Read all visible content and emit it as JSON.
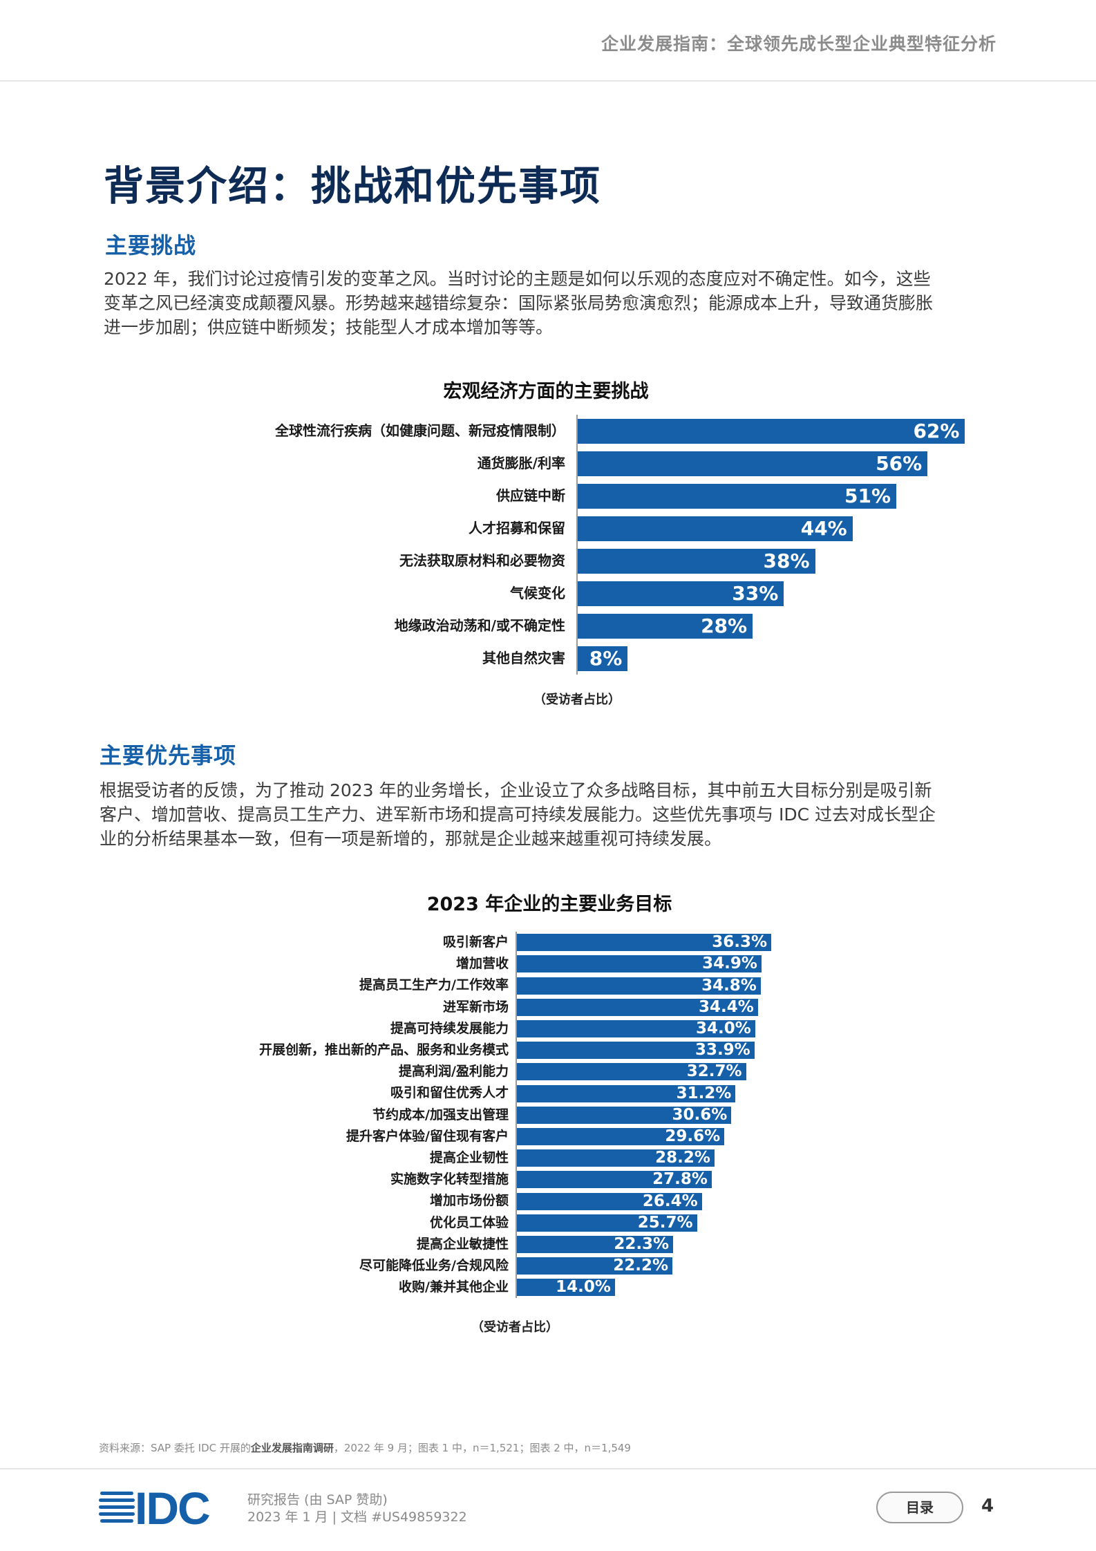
{
  "header": {
    "title": "企业发展指南：全球领先成长型企业典型特征分析"
  },
  "main_title": "背景介绍：挑战和优先事项",
  "section1": {
    "title": "主要挑战",
    "paragraph_lines": [
      "2022 年，我们讨论过疫情引发的变革之风。当时讨论的主题是如何以乐观的态度应对不确定性。如今，这些",
      "变革之风已经演变成颠覆风暴。形势越来越错综复杂：国际紧张局势愈演愈烈；能源成本上升，导致通货膨胀",
      "进一步加剧；供应链中断频发；技能型人才成本增加等等。"
    ]
  },
  "section2": {
    "title": "主要优先事项",
    "paragraph_lines": [
      "根据受访者的反馈，为了推动 2023 年的业务增长，企业设立了众多战略目标，其中前五大目标分别是吸引新",
      "客户、增加营收、提高员工生产力、进军新市场和提高可持续发展能力。这些优先事项与 IDC 过去对成长型企",
      "业的分析结果基本一致，但有一项是新增的，那就是企业越来越重视可持续发展。"
    ]
  },
  "chart_data": [
    {
      "type": "bar",
      "orientation": "horizontal",
      "title": "宏观经济方面的主要挑战",
      "categories": [
        "全球性流行疾病（如健康问题、新冠疫情限制）",
        "通货膨胀/利率",
        "供应链中断",
        "人才招募和保留",
        "无法获取原材料和必要物资",
        "气候变化",
        "地缘政治动荡和/或不确定性",
        "其他自然灾害"
      ],
      "values": [
        62,
        56,
        51,
        44,
        38,
        33,
        28,
        8
      ],
      "value_labels": [
        "62%",
        "56%",
        "51%",
        "44%",
        "38%",
        "33%",
        "28%",
        "8%"
      ],
      "note": "（受访者占比）",
      "xlim": [
        0,
        100
      ],
      "color": "#1560a8"
    },
    {
      "type": "bar",
      "orientation": "horizontal",
      "title": "2023 年企业的主要业务目标",
      "categories": [
        "吸引新客户",
        "增加营收",
        "提高员工生产力/工作效率",
        "进军新市场",
        "提高可持续发展能力",
        "开展创新，推出新的产品、服务和业务模式",
        "提高利润/盈利能力",
        "吸引和留住优秀人才",
        "节约成本/加强支出管理",
        "提升客户体验/留住现有客户",
        "提高企业韧性",
        "实施数字化转型措施",
        "增加市场份额",
        "优化员工体验",
        "提高企业敏捷性",
        "尽可能降低业务/合规风险",
        "收购/兼并其他企业"
      ],
      "values": [
        36.3,
        34.9,
        34.8,
        34.4,
        34.0,
        33.9,
        32.7,
        31.2,
        30.6,
        29.6,
        28.2,
        27.8,
        26.4,
        25.7,
        22.3,
        22.2,
        14.0
      ],
      "value_labels": [
        "36.3%",
        "34.9%",
        "34.8%",
        "34.4%",
        "34.0%",
        "33.9%",
        "32.7%",
        "31.2%",
        "30.6%",
        "29.6%",
        "28.2%",
        "27.8%",
        "26.4%",
        "25.7%",
        "22.3%",
        "22.2%",
        "14.0%"
      ],
      "note": "（受访者占比）",
      "xlim": [
        0,
        100
      ],
      "color": "#1560a8"
    }
  ],
  "source": {
    "prefix": "资料来源：SAP 委托 IDC 开展的",
    "bold": "企业发展指南调研",
    "suffix": "，2022 年 9 月；图表 1 中，n＝1,521；图表 2 中，n＝1,549"
  },
  "footer": {
    "logo_text": "IDC",
    "line1": "研究报告 (由 SAP 赞助)",
    "line2": "2023 年 1 月 | 文档 #US49859322",
    "toc_label": "目录",
    "page_number": "4"
  }
}
